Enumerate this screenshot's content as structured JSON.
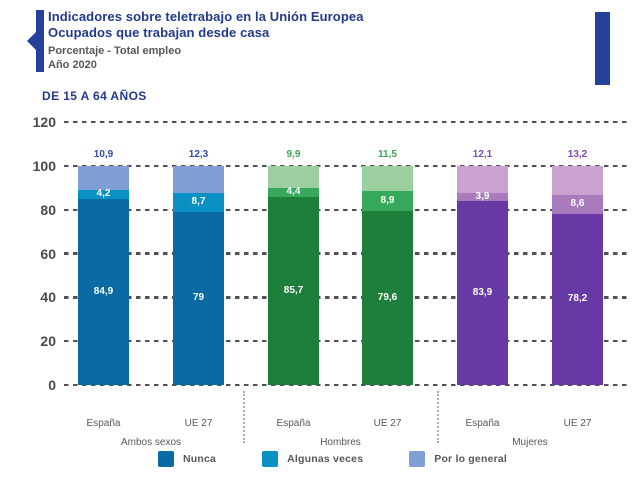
{
  "header": {
    "title_line1": "Indicadores sobre teletrabajo en la Unión Europea",
    "title_line2": "Ocupados que trabajan desde casa",
    "subtitle_line1": "Porcentaje - Total empleo",
    "subtitle_line2": "Año 2020"
  },
  "section_label": "DE 15 A 64 AÑOS",
  "colors": {
    "navy_title": "#203A8C",
    "accent_marker": "#26419C",
    "gray_text": "#58585A",
    "grid": "#525254"
  },
  "chart_data": {
    "type": "bar",
    "stacked": true,
    "unit": "percent",
    "title": "DE 15 A 64 AÑOS",
    "ylim": [
      0,
      120
    ],
    "yticks": [
      0,
      20,
      40,
      60,
      80,
      100,
      120
    ],
    "grid": "horizontal-dashed",
    "series_bottom_to_top": [
      "Nunca",
      "Algunas veces",
      "Por lo general"
    ],
    "groups": [
      {
        "label": "Ambos sexos",
        "palette": [
          "#0A6AA4",
          "#0A91C4",
          "#7F9FD6"
        ],
        "top_label_color": "#2E4EA3",
        "bars": [
          {
            "category": "España",
            "segments": [
              {
                "series": "Nunca",
                "value": 84.9,
                "label": "84,9"
              },
              {
                "series": "Algunas veces",
                "value": 4.2,
                "label": "4,2"
              },
              {
                "series": "Por lo general",
                "value": 10.9,
                "label": "10,9"
              }
            ]
          },
          {
            "category": "UE 27",
            "segments": [
              {
                "series": "Nunca",
                "value": 79,
                "label": "79"
              },
              {
                "series": "Algunas veces",
                "value": 8.7,
                "label": "8,7"
              },
              {
                "series": "Por lo general",
                "value": 12.3,
                "label": "12,3"
              }
            ]
          }
        ]
      },
      {
        "label": "Hombres",
        "palette": [
          "#1E7E3C",
          "#36A95C",
          "#9CCF9F"
        ],
        "top_label_color": "#3CA75C",
        "bars": [
          {
            "category": "España",
            "segments": [
              {
                "series": "Nunca",
                "value": 85.7,
                "label": "85,7"
              },
              {
                "series": "Algunas veces",
                "value": 4.4,
                "label": "4,4"
              },
              {
                "series": "Por lo general",
                "value": 9.9,
                "label": "9,9"
              }
            ]
          },
          {
            "category": "UE 27",
            "segments": [
              {
                "series": "Nunca",
                "value": 79.6,
                "label": "79,6"
              },
              {
                "series": "Algunas veces",
                "value": 8.9,
                "label": "8,9"
              },
              {
                "series": "Por lo general",
                "value": 11.5,
                "label": "11,5"
              }
            ]
          }
        ]
      },
      {
        "label": "Mujeres",
        "palette": [
          "#6639A4",
          "#A97BBD",
          "#C9A2D1"
        ],
        "top_label_color": "#7E4AAE",
        "bars": [
          {
            "category": "España",
            "segments": [
              {
                "series": "Nunca",
                "value": 83.9,
                "label": "83,9"
              },
              {
                "series": "Algunas veces",
                "value": 3.9,
                "label": "3,9"
              },
              {
                "series": "Por lo general",
                "value": 12.1,
                "label": "12,1"
              }
            ]
          },
          {
            "category": "UE 27",
            "segments": [
              {
                "series": "Nunca",
                "value": 78.2,
                "label": "78,2"
              },
              {
                "series": "Algunas veces",
                "value": 8.6,
                "label": "8,6"
              },
              {
                "series": "Por lo general",
                "value": 13.2,
                "label": "13,2"
              }
            ]
          }
        ]
      }
    ],
    "legend": {
      "position": "bottom",
      "items": [
        {
          "label": "Nunca",
          "color": "#0A6AA4"
        },
        {
          "label": "Algunas veces",
          "color": "#0A91C4"
        },
        {
          "label": "Por lo general",
          "color": "#7F9FD6"
        }
      ]
    }
  }
}
